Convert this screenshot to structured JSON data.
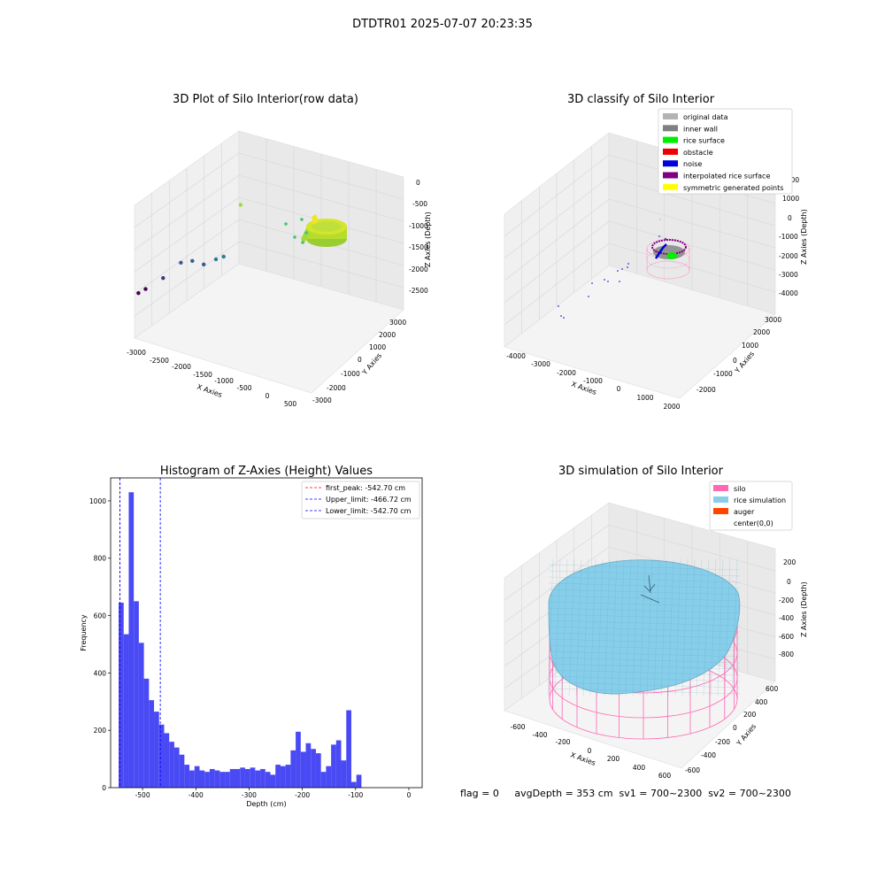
{
  "figure_title": "DTDTR01 2025-07-07 20:23:35",
  "footer": "flag = 0     avgDepth = 353 cm  sv1 = 700~2300  sv2 = 700~2300",
  "chart_data": [
    {
      "type": "scatter",
      "title": "3D Plot of Silo Interior(row data)",
      "xlabel": "X Axies",
      "ylabel": "Y Axies",
      "zlabel": "Z Axies (Depth)",
      "x_ticks": [
        "-3000",
        "-2500",
        "-2000",
        "-1500",
        "-1000",
        "-500",
        "0",
        "500"
      ],
      "y_ticks": [
        "-3000",
        "-2000",
        "-1000",
        "0",
        "1000",
        "2000",
        "3000"
      ],
      "z_ticks": [
        "0",
        "-500",
        "-1000",
        "-1500",
        "-2000",
        "-2500"
      ],
      "colormap": "viridis",
      "points": [
        {
          "x": -2750,
          "y": -200,
          "z": -2650
        },
        {
          "x": -2600,
          "y": -250,
          "z": -2500
        },
        {
          "x": -2300,
          "y": -150,
          "z": -2200
        },
        {
          "x": -2100,
          "y": 300,
          "z": -1950
        },
        {
          "x": -1900,
          "y": 350,
          "z": -1850
        },
        {
          "x": -1700,
          "y": 400,
          "z": -1850
        },
        {
          "x": -1500,
          "y": 500,
          "z": -1700
        },
        {
          "x": -1400,
          "y": 650,
          "z": -1650
        },
        {
          "x": -1200,
          "y": 1050,
          "z": -700
        }
      ],
      "dense_cluster": "rice surface ring near z ≈ -500 to -700"
    },
    {
      "type": "scatter",
      "title": "3D classify of Silo Interior",
      "xlabel": "X Axies",
      "ylabel": "Y Axies",
      "zlabel": "Z Axies (Depth)",
      "x_ticks": [
        "-4000",
        "-3000",
        "-2000",
        "-1000",
        "0",
        "1000",
        "2000"
      ],
      "y_ticks": [
        "-2000",
        "-1000",
        "0",
        "1000",
        "2000",
        "3000"
      ],
      "z_ticks": [
        "2000",
        "1000",
        "0",
        "-1000",
        "-2000",
        "-3000",
        "-4000"
      ],
      "legend": [
        {
          "label": "original data",
          "color": "#b3b3b3"
        },
        {
          "label": "inner wall",
          "color": "#808080"
        },
        {
          "label": "rice surface",
          "color": "#00ee00"
        },
        {
          "label": "obstacle",
          "color": "#ee0000"
        },
        {
          "label": "noise",
          "color": "#0000dd"
        },
        {
          "label": "interpolated rice surface",
          "color": "#800080"
        },
        {
          "label": "symmetric generated points",
          "color": "#ffff00"
        }
      ]
    },
    {
      "type": "bar",
      "title": "Histogram of Z-Axies (Height) Values",
      "xlabel": "Depth (cm)",
      "ylabel": "Frequency",
      "xlim": [
        -560,
        25
      ],
      "ylim": [
        0,
        1080
      ],
      "x_ticks": [
        -500,
        -400,
        -300,
        -200,
        -100,
        0
      ],
      "y_ticks": [
        0,
        200,
        400,
        600,
        800,
        1000
      ],
      "bin_start": -545,
      "bin_width": 9.5,
      "values": [
        645,
        535,
        1030,
        650,
        505,
        380,
        305,
        265,
        220,
        190,
        160,
        140,
        115,
        80,
        60,
        75,
        60,
        55,
        65,
        60,
        55,
        55,
        65,
        65,
        70,
        65,
        70,
        60,
        65,
        55,
        45,
        80,
        75,
        80,
        130,
        195,
        125,
        155,
        135,
        120,
        55,
        75,
        150,
        165,
        95,
        270,
        20,
        45
      ],
      "bar_color": "#4a4af5",
      "lines": [
        {
          "label": "first_peak: -542.70 cm",
          "value": -542.7,
          "color": "#ff0000"
        },
        {
          "label": "Upper_limit: -466.72 cm",
          "value": -466.72,
          "color": "#0000ff"
        },
        {
          "label": "Lower_limit: -542.70 cm",
          "value": -542.7,
          "color": "#0000ff"
        }
      ]
    },
    {
      "type": "surface",
      "title": "3D simulation of Silo Interior",
      "xlabel": "X Axies",
      "ylabel": "Y Axies",
      "zlabel": "Z Axies (Depth)",
      "x_ticks": [
        "-600",
        "-400",
        "-200",
        "0",
        "200",
        "400",
        "600"
      ],
      "y_ticks": [
        "-600",
        "-400",
        "-200",
        "0",
        "200",
        "400",
        "600"
      ],
      "z_ticks": [
        "200",
        "0",
        "-200",
        "-400",
        "-600",
        "-800"
      ],
      "legend": [
        {
          "label": "silo",
          "color": "#ff69b4"
        },
        {
          "label": "rice simulation",
          "color": "#87ceeb"
        },
        {
          "label": "auger",
          "color": "#ff4500"
        },
        {
          "label": "center(0,0)",
          "color": ""
        }
      ]
    }
  ]
}
